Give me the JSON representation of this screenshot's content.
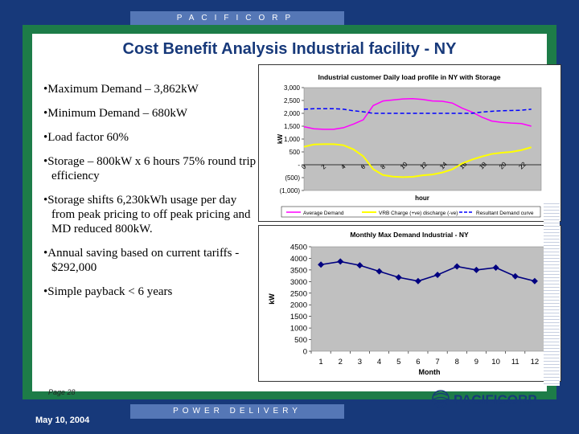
{
  "header": {
    "brand_band": "PACIFICORP"
  },
  "slide": {
    "title": "Cost Benefit Analysis Industrial facility - NY",
    "bullets": [
      "Maximum Demand – 3,862kW",
      "Minimum Demand – 680kW",
      "Load factor 60%",
      "Storage – 800kW x 6 hours 75% round trip efficiency",
      "Storage shifts 6,230kWh usage per day from peak pricing to off peak pricing and MD reduced 800kW.",
      "Annual saving based on current tariffs - $292,000",
      "Simple payback < 6 years"
    ],
    "page_label": "Page 28",
    "logo_text": "PACIFICORP"
  },
  "footer": {
    "band": "POWER DELIVERY",
    "date": "May 10, 2004"
  },
  "colors": {
    "navy": "#17397a",
    "green": "#1d7c48",
    "band_blue": "#5577b6",
    "plot_gray": "#c0c0c0",
    "magenta": "#ff00ff",
    "yellow": "#ffff00",
    "blue": "#0000ff",
    "series_navy": "#000080"
  },
  "chart_data": [
    {
      "type": "line",
      "title": "Industrial customer Daily load profile in NY with Storage",
      "xlabel": "hour",
      "ylabel": "kW",
      "x_ticks": [
        "0",
        "2",
        "4",
        "6",
        "8",
        "10",
        "12",
        "14",
        "16",
        "18",
        "20",
        "22"
      ],
      "y_tick_labels": [
        "3,000",
        "2,500",
        "2,000",
        "1,500",
        "1,000",
        "500",
        "-",
        "(500)",
        "(1,000)"
      ],
      "ylim": [
        -1000,
        3000
      ],
      "x": [
        0,
        1,
        2,
        3,
        4,
        5,
        6,
        7,
        8,
        9,
        10,
        11,
        12,
        13,
        14,
        15,
        16,
        17,
        18,
        19,
        20,
        21,
        22,
        23
      ],
      "grid": false,
      "legend_position": "bottom",
      "series": [
        {
          "name": "Average Demand",
          "color": "#ff00ff",
          "values": [
            1480,
            1400,
            1380,
            1380,
            1440,
            1580,
            1750,
            2300,
            2480,
            2520,
            2560,
            2570,
            2540,
            2480,
            2470,
            2400,
            2200,
            2050,
            1850,
            1700,
            1650,
            1620,
            1600,
            1500
          ]
        },
        {
          "name": "VRB Charge (+ve) discharge (-ve)",
          "color": "#ffff00",
          "values": [
            700,
            790,
            800,
            800,
            760,
            600,
            330,
            -170,
            -400,
            -460,
            -480,
            -470,
            -410,
            -380,
            -300,
            -180,
            50,
            200,
            320,
            420,
            470,
            500,
            570,
            680
          ]
        },
        {
          "name": "Resultant Demand curve",
          "color": "#0000ff",
          "dashed": true,
          "values": [
            2160,
            2180,
            2180,
            2180,
            2160,
            2100,
            2060,
            2000,
            2000,
            2000,
            2000,
            2000,
            2000,
            2000,
            2000,
            2000,
            2000,
            2000,
            2050,
            2080,
            2100,
            2110,
            2120,
            2160
          ]
        }
      ]
    },
    {
      "type": "line",
      "title": "Monthly Max Demand Industrial - NY",
      "xlabel": "Month",
      "ylabel": "kW",
      "categories": [
        "1",
        "2",
        "3",
        "4",
        "5",
        "6",
        "7",
        "8",
        "9",
        "10",
        "11",
        "12"
      ],
      "y_ticks": [
        0,
        500,
        1000,
        1500,
        2000,
        2500,
        3000,
        3500,
        4000,
        4500
      ],
      "ylim": [
        0,
        4500
      ],
      "grid": false,
      "series": [
        {
          "color": "#000080",
          "values": [
            3730,
            3862,
            3700,
            3440,
            3180,
            3020,
            3290,
            3650,
            3500,
            3600,
            3230,
            3020
          ]
        }
      ]
    }
  ]
}
